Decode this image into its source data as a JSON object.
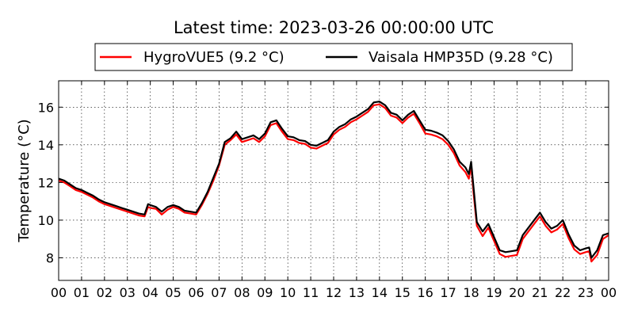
{
  "chart_data": {
    "type": "line",
    "title": "Latest time: 2023-03-26 00:00:00 UTC",
    "xlabel": "",
    "ylabel": "Temperature (°C)",
    "xlim": [
      0,
      24
    ],
    "ylim": [
      6.8,
      17.4
    ],
    "x_ticks": [
      "00",
      "01",
      "02",
      "03",
      "04",
      "05",
      "06",
      "07",
      "08",
      "09",
      "10",
      "11",
      "12",
      "13",
      "14",
      "15",
      "16",
      "17",
      "18",
      "19",
      "20",
      "21",
      "22",
      "23",
      "00"
    ],
    "y_ticks": [
      8,
      10,
      12,
      14,
      16
    ],
    "grid": true,
    "legend_position": "top",
    "x": [
      0,
      0.25,
      0.5,
      0.75,
      1,
      1.25,
      1.5,
      1.75,
      2,
      2.25,
      2.5,
      2.75,
      3,
      3.25,
      3.5,
      3.75,
      3.9,
      4,
      4.25,
      4.5,
      4.75,
      5,
      5.25,
      5.5,
      5.75,
      6,
      6.25,
      6.5,
      6.75,
      7,
      7.25,
      7.5,
      7.75,
      8,
      8.25,
      8.5,
      8.75,
      9,
      9.25,
      9.5,
      9.75,
      10,
      10.25,
      10.5,
      10.75,
      11,
      11.25,
      11.5,
      11.75,
      12,
      12.25,
      12.5,
      12.75,
      13,
      13.25,
      13.5,
      13.75,
      14,
      14.25,
      14.5,
      14.75,
      15,
      15.25,
      15.5,
      15.75,
      16,
      16.25,
      16.5,
      16.75,
      17,
      17.25,
      17.5,
      17.75,
      17.9,
      18,
      18.1,
      18.25,
      18.5,
      18.75,
      19,
      19.25,
      19.5,
      19.75,
      20,
      20.25,
      20.5,
      20.75,
      21,
      21.25,
      21.5,
      21.75,
      22,
      22.25,
      22.5,
      22.75,
      23,
      23.15,
      23.25,
      23.5,
      23.75,
      24
    ],
    "series": [
      {
        "name": "HygroVUE5 (9.2 °C)",
        "color": "#ff0000",
        "values": [
          12.1,
          12.0,
          11.8,
          11.6,
          11.5,
          11.35,
          11.2,
          11.0,
          10.85,
          10.75,
          10.65,
          10.55,
          10.45,
          10.35,
          10.25,
          10.2,
          10.7,
          10.65,
          10.6,
          10.3,
          10.55,
          10.7,
          10.6,
          10.4,
          10.35,
          10.3,
          10.8,
          11.4,
          12.1,
          12.9,
          14.0,
          14.25,
          14.55,
          14.15,
          14.25,
          14.35,
          14.15,
          14.45,
          15.05,
          15.15,
          14.7,
          14.3,
          14.25,
          14.1,
          14.05,
          13.85,
          13.8,
          13.95,
          14.1,
          14.55,
          14.8,
          14.95,
          15.2,
          15.35,
          15.55,
          15.75,
          16.1,
          16.15,
          15.95,
          15.55,
          15.45,
          15.15,
          15.45,
          15.65,
          15.15,
          14.6,
          14.55,
          14.45,
          14.3,
          14.0,
          13.55,
          12.9,
          12.55,
          12.2,
          12.9,
          11.5,
          9.7,
          9.15,
          9.6,
          8.9,
          8.2,
          8.05,
          8.1,
          8.15,
          9.0,
          9.4,
          9.8,
          10.2,
          9.7,
          9.35,
          9.5,
          9.8,
          9.05,
          8.45,
          8.2,
          8.3,
          8.35,
          7.8,
          8.15,
          9.0,
          9.2
        ]
      },
      {
        "name": "Vaisala HMP35D (9.28 °C)",
        "color": "#000000",
        "values": [
          12.2,
          12.1,
          11.9,
          11.7,
          11.6,
          11.45,
          11.3,
          11.1,
          10.95,
          10.85,
          10.75,
          10.65,
          10.55,
          10.45,
          10.35,
          10.3,
          10.85,
          10.8,
          10.7,
          10.45,
          10.7,
          10.8,
          10.7,
          10.5,
          10.45,
          10.4,
          10.9,
          11.5,
          12.25,
          13.0,
          14.15,
          14.35,
          14.7,
          14.3,
          14.4,
          14.5,
          14.3,
          14.6,
          15.2,
          15.3,
          14.85,
          14.45,
          14.4,
          14.25,
          14.2,
          14.0,
          13.95,
          14.1,
          14.25,
          14.7,
          14.95,
          15.1,
          15.35,
          15.5,
          15.7,
          15.9,
          16.25,
          16.3,
          16.1,
          15.7,
          15.6,
          15.3,
          15.6,
          15.8,
          15.3,
          14.8,
          14.75,
          14.65,
          14.5,
          14.2,
          13.75,
          13.1,
          12.8,
          12.45,
          13.1,
          11.8,
          9.9,
          9.4,
          9.8,
          9.1,
          8.4,
          8.3,
          8.35,
          8.4,
          9.2,
          9.6,
          10.0,
          10.4,
          9.9,
          9.55,
          9.7,
          10.0,
          9.25,
          8.65,
          8.4,
          8.5,
          8.55,
          8.0,
          8.4,
          9.2,
          9.3
        ]
      }
    ]
  }
}
